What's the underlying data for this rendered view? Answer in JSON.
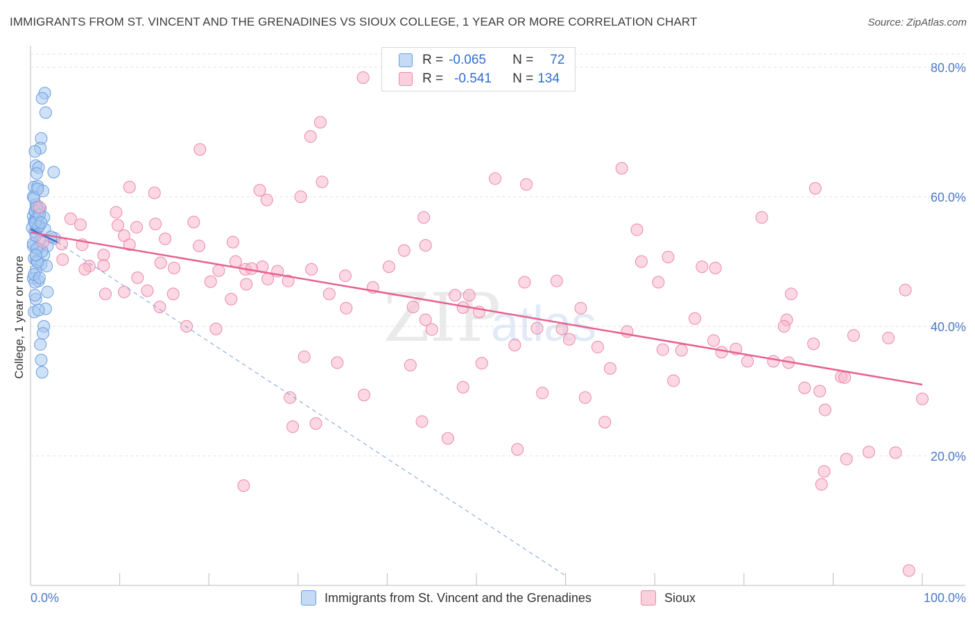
{
  "header": {
    "title": "IMMIGRANTS FROM ST. VINCENT AND THE GRENADINES VS SIOUX COLLEGE, 1 YEAR OR MORE CORRELATION CHART",
    "source": "Source: ZipAtlas.com"
  },
  "legend": {
    "rows": [
      {
        "r_label": "R =",
        "r_value": "-0.065",
        "n_label": "N =",
        "n_value": "72",
        "color": "#a8c8f0",
        "border": "#6a9ee0"
      },
      {
        "r_label": "R =",
        "r_value": "-0.541",
        "n_label": "N =",
        "n_value": "134",
        "color": "#f7b8cc",
        "border": "#ec88a8"
      }
    ]
  },
  "bottom_legend": {
    "items": [
      {
        "label": "Immigrants from St. Vincent and the Grenadines",
        "color": "#a8c8f0"
      },
      {
        "label": "Sioux",
        "color": "#f7b8cc"
      }
    ]
  },
  "watermark": {
    "zip": "ZIP",
    "atlas": "atlas"
  },
  "chart_data": {
    "type": "scatter",
    "title": "IMMIGRANTS FROM ST. VINCENT AND THE GRENADINES VS SIOUX COLLEGE, 1 YEAR OR MORE CORRELATION CHART",
    "xlabel": "",
    "ylabel": "College, 1 year or more",
    "xlim": [
      0,
      100
    ],
    "ylim": [
      0,
      85
    ],
    "x_tick_labels": [
      "0.0%",
      "100.0%"
    ],
    "y_ticks": [
      20,
      40,
      60,
      80
    ],
    "y_tick_labels": [
      "20.0%",
      "40.0%",
      "60.0%",
      "80.0%"
    ],
    "grid": true,
    "series": [
      {
        "name": "Immigrants from St. Vincent and the Grenadines",
        "color": "#a8c8f0",
        "stroke": "#6a9ee0",
        "trend": {
          "x": [
            0,
            3
          ],
          "y": [
            55.0,
            53.0
          ],
          "style": "solid",
          "color": "#3a6fd0"
        },
        "trend_ext": {
          "x": [
            3,
            60
          ],
          "y": [
            53.0,
            1.5
          ],
          "style": "dashed",
          "color": "#7a9ed8"
        },
        "points": [
          [
            1.6,
            76.0
          ],
          [
            1.3,
            75.2
          ],
          [
            1.7,
            73.0
          ],
          [
            1.2,
            69.0
          ],
          [
            1.1,
            67.5
          ],
          [
            0.5,
            67.0
          ],
          [
            0.6,
            64.8
          ],
          [
            0.9,
            64.5
          ],
          [
            0.7,
            63.6
          ],
          [
            2.6,
            63.8
          ],
          [
            0.4,
            61.5
          ],
          [
            0.8,
            61.6
          ],
          [
            1.4,
            60.9
          ],
          [
            0.3,
            60.0
          ],
          [
            0.6,
            58.8
          ],
          [
            1.1,
            58.2
          ],
          [
            0.9,
            57.9
          ],
          [
            0.5,
            57.6
          ],
          [
            0.3,
            57.0
          ],
          [
            1.5,
            56.8
          ],
          [
            0.7,
            56.7
          ],
          [
            0.4,
            56.2
          ],
          [
            0.6,
            55.8
          ],
          [
            1.0,
            55.6
          ],
          [
            0.2,
            55.2
          ],
          [
            0.8,
            55.1
          ],
          [
            0.5,
            54.6
          ],
          [
            1.6,
            55.0
          ],
          [
            2.7,
            53.6
          ],
          [
            0.3,
            52.4
          ],
          [
            1.9,
            52.4
          ],
          [
            0.9,
            52.0
          ],
          [
            1.5,
            51.0
          ],
          [
            0.4,
            50.5
          ],
          [
            0.7,
            50.1
          ],
          [
            1.2,
            49.6
          ],
          [
            1.8,
            49.3
          ],
          [
            0.6,
            48.6
          ],
          [
            0.3,
            47.4
          ],
          [
            0.9,
            47.0
          ],
          [
            1.9,
            45.3
          ],
          [
            0.6,
            44.2
          ],
          [
            1.7,
            42.7
          ],
          [
            0.4,
            42.2
          ],
          [
            1.5,
            40.0
          ],
          [
            1.4,
            38.9
          ],
          [
            1.1,
            37.2
          ],
          [
            1.2,
            34.8
          ],
          [
            1.3,
            32.9
          ],
          [
            0.8,
            57.1
          ],
          [
            0.6,
            56.5
          ],
          [
            0.5,
            57.8
          ],
          [
            0.4,
            59.8
          ],
          [
            0.7,
            58.4
          ],
          [
            0.9,
            55.4
          ],
          [
            0.5,
            56.0
          ],
          [
            1.0,
            53.2
          ],
          [
            0.3,
            52.8
          ],
          [
            0.8,
            49.9
          ],
          [
            1.3,
            51.6
          ],
          [
            0.5,
            46.8
          ],
          [
            2.3,
            53.8
          ],
          [
            0.6,
            54.0
          ],
          [
            1.0,
            57.2
          ],
          [
            0.7,
            52.0
          ],
          [
            0.4,
            48.0
          ],
          [
            0.8,
            61.2
          ],
          [
            1.2,
            56.0
          ],
          [
            0.6,
            51.0
          ],
          [
            1.0,
            47.5
          ],
          [
            0.5,
            44.8
          ],
          [
            0.9,
            42.5
          ]
        ]
      },
      {
        "name": "Sioux",
        "color": "#f7b8cc",
        "stroke": "#ec88a8",
        "trend": {
          "x": [
            0,
            100
          ],
          "y": [
            54.5,
            31.0
          ],
          "style": "solid",
          "color": "#e8608e"
        },
        "points": [
          [
            37.3,
            78.4
          ],
          [
            32.5,
            71.5
          ],
          [
            31.4,
            69.3
          ],
          [
            19.0,
            67.3
          ],
          [
            66.3,
            64.4
          ],
          [
            52.1,
            62.8
          ],
          [
            32.7,
            62.3
          ],
          [
            11.1,
            61.5
          ],
          [
            25.7,
            61.0
          ],
          [
            55.6,
            61.9
          ],
          [
            13.9,
            60.6
          ],
          [
            26.5,
            59.5
          ],
          [
            88.0,
            61.3
          ],
          [
            30.3,
            60.0
          ],
          [
            1.0,
            58.4
          ],
          [
            9.6,
            57.6
          ],
          [
            44.1,
            56.8
          ],
          [
            4.5,
            56.6
          ],
          [
            82.0,
            56.8
          ],
          [
            18.3,
            56.1
          ],
          [
            5.6,
            55.7
          ],
          [
            14.0,
            55.8
          ],
          [
            9.8,
            55.6
          ],
          [
            11.9,
            55.3
          ],
          [
            68.0,
            54.9
          ],
          [
            10.5,
            54.0
          ],
          [
            15.1,
            53.5
          ],
          [
            22.7,
            53.0
          ],
          [
            3.5,
            52.7
          ],
          [
            5.8,
            52.6
          ],
          [
            18.9,
            52.4
          ],
          [
            44.3,
            52.5
          ],
          [
            41.9,
            51.7
          ],
          [
            8.2,
            51.0
          ],
          [
            71.5,
            50.7
          ],
          [
            3.6,
            50.3
          ],
          [
            1.4,
            53.0
          ],
          [
            11.1,
            52.6
          ],
          [
            14.6,
            49.8
          ],
          [
            6.6,
            49.3
          ],
          [
            8.2,
            49.4
          ],
          [
            16.1,
            49.0
          ],
          [
            21.1,
            48.6
          ],
          [
            24.1,
            48.8
          ],
          [
            26.0,
            49.2
          ],
          [
            31.5,
            48.8
          ],
          [
            68.5,
            50.0
          ],
          [
            75.3,
            49.2
          ],
          [
            6.1,
            48.8
          ],
          [
            27.7,
            48.5
          ],
          [
            24.8,
            48.9
          ],
          [
            23.0,
            50.0
          ],
          [
            35.3,
            47.8
          ],
          [
            26.6,
            47.3
          ],
          [
            20.2,
            46.9
          ],
          [
            24.2,
            46.5
          ],
          [
            55.4,
            46.8
          ],
          [
            70.4,
            46.8
          ],
          [
            85.3,
            45.0
          ],
          [
            98.1,
            45.6
          ],
          [
            8.4,
            45.0
          ],
          [
            10.5,
            45.3
          ],
          [
            13.1,
            45.5
          ],
          [
            16.0,
            45.0
          ],
          [
            47.6,
            44.8
          ],
          [
            49.2,
            44.8
          ],
          [
            14.5,
            43.0
          ],
          [
            35.4,
            42.8
          ],
          [
            42.9,
            43.0
          ],
          [
            48.5,
            42.9
          ],
          [
            61.7,
            42.8
          ],
          [
            50.3,
            42.2
          ],
          [
            44.3,
            41.0
          ],
          [
            74.5,
            41.2
          ],
          [
            84.8,
            41.0
          ],
          [
            17.5,
            40.0
          ],
          [
            20.8,
            39.6
          ],
          [
            56.8,
            39.7
          ],
          [
            59.6,
            39.6
          ],
          [
            84.5,
            40.0
          ],
          [
            66.9,
            39.2
          ],
          [
            92.3,
            38.6
          ],
          [
            96.2,
            38.2
          ],
          [
            60.4,
            38.0
          ],
          [
            76.6,
            37.8
          ],
          [
            87.8,
            37.3
          ],
          [
            54.3,
            37.1
          ],
          [
            79.1,
            36.5
          ],
          [
            63.6,
            36.8
          ],
          [
            70.9,
            36.4
          ],
          [
            73.0,
            36.3
          ],
          [
            77.5,
            36.0
          ],
          [
            30.7,
            35.3
          ],
          [
            34.4,
            34.4
          ],
          [
            42.6,
            34.0
          ],
          [
            50.6,
            34.3
          ],
          [
            65.0,
            33.5
          ],
          [
            80.4,
            34.6
          ],
          [
            83.3,
            34.6
          ],
          [
            85.0,
            34.4
          ],
          [
            72.1,
            31.6
          ],
          [
            90.9,
            32.2
          ],
          [
            91.3,
            32.1
          ],
          [
            86.8,
            30.5
          ],
          [
            88.5,
            30.0
          ],
          [
            48.5,
            30.6
          ],
          [
            57.4,
            29.7
          ],
          [
            37.4,
            29.4
          ],
          [
            29.1,
            29.0
          ],
          [
            62.2,
            29.0
          ],
          [
            100.0,
            28.8
          ],
          [
            89.1,
            27.1
          ],
          [
            43.9,
            25.3
          ],
          [
            32.0,
            25.0
          ],
          [
            64.4,
            25.2
          ],
          [
            29.4,
            24.5
          ],
          [
            46.8,
            22.7
          ],
          [
            54.6,
            21.0
          ],
          [
            94.0,
            20.6
          ],
          [
            97.0,
            20.5
          ],
          [
            91.5,
            19.5
          ],
          [
            89.0,
            17.6
          ],
          [
            88.7,
            15.6
          ],
          [
            23.9,
            15.4
          ],
          [
            98.5,
            2.3
          ],
          [
            33.5,
            45.0
          ],
          [
            38.4,
            46.0
          ],
          [
            59.0,
            47.0
          ],
          [
            40.2,
            49.2
          ],
          [
            76.8,
            49.0
          ],
          [
            22.5,
            44.2
          ],
          [
            12.0,
            47.5
          ],
          [
            28.9,
            47.0
          ],
          [
            45.0,
            39.5
          ]
        ]
      }
    ]
  }
}
